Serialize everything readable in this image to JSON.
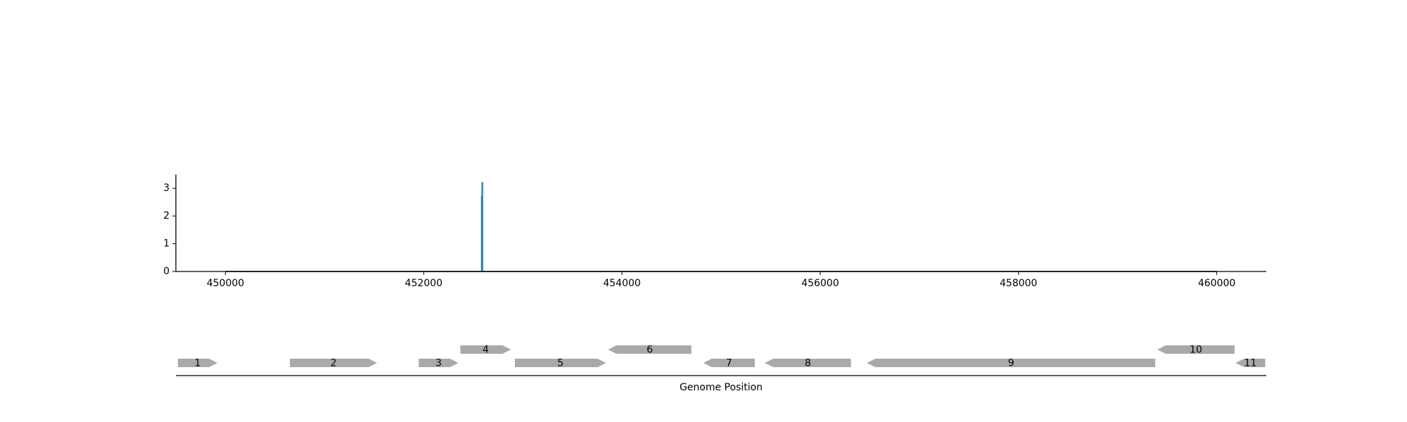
{
  "chart_data": [
    {
      "type": "line",
      "title": "",
      "xlabel": "",
      "ylabel": "",
      "xlim": [
        449500,
        460500
      ],
      "ylim": [
        0,
        3.5
      ],
      "xticks": [
        450000,
        452000,
        454000,
        456000,
        458000,
        460000
      ],
      "yticks": [
        0,
        1,
        2,
        3
      ],
      "grid": false,
      "series": [
        {
          "color": "#1f77b4",
          "x": [
            450000,
            452585,
            452585,
            452588,
            452588,
            452590,
            452590,
            452592,
            452592,
            452595,
            452595,
            460000
          ],
          "y": [
            0,
            0,
            2.7,
            2.7,
            0,
            0,
            3.2,
            3.2,
            0,
            0,
            0,
            0
          ]
        }
      ]
    },
    {
      "type": "gene_map",
      "title": "",
      "xlabel": "Genome Position",
      "xlim": [
        449500,
        460500
      ],
      "feature_color": "#a9a9a9",
      "genes": [
        {
          "label": "1",
          "start": 449520,
          "end": 449920,
          "strand": "+",
          "row": 0
        },
        {
          "label": "2",
          "start": 450650,
          "end": 451530,
          "strand": "+",
          "row": 0
        },
        {
          "label": "3",
          "start": 451950,
          "end": 452350,
          "strand": "+",
          "row": 0
        },
        {
          "label": "4",
          "start": 452370,
          "end": 452880,
          "strand": "+",
          "row": 1
        },
        {
          "label": "5",
          "start": 452920,
          "end": 453840,
          "strand": "+",
          "row": 0
        },
        {
          "label": "6",
          "start": 453860,
          "end": 454700,
          "strand": "-",
          "row": 1
        },
        {
          "label": "7",
          "start": 454820,
          "end": 455340,
          "strand": "-",
          "row": 0
        },
        {
          "label": "8",
          "start": 455440,
          "end": 456310,
          "strand": "-",
          "row": 0
        },
        {
          "label": "9",
          "start": 456470,
          "end": 459380,
          "strand": "-",
          "row": 0
        },
        {
          "label": "10",
          "start": 459400,
          "end": 460180,
          "strand": "-",
          "row": 1
        },
        {
          "label": "11",
          "start": 460190,
          "end": 460490,
          "strand": "-",
          "row": 0
        }
      ]
    }
  ]
}
